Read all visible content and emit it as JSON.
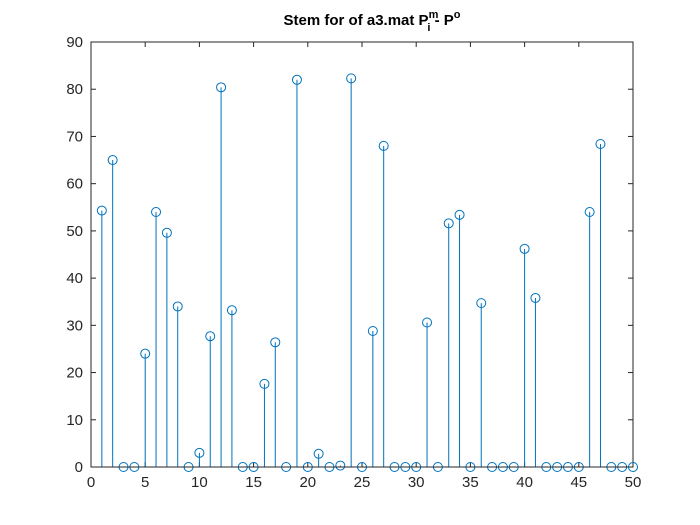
{
  "chart_data": {
    "type": "stem",
    "title": {
      "prefix": "Stem for of a3.mat P",
      "superscript": "m",
      "subscript": "i",
      "middle": " - P",
      "superscript2": "o"
    },
    "xlabel": "",
    "ylabel": "",
    "xlim": [
      0,
      50
    ],
    "ylim": [
      0,
      90
    ],
    "xticks": [
      0,
      5,
      10,
      15,
      20,
      25,
      30,
      35,
      40,
      45,
      50
    ],
    "yticks": [
      0,
      10,
      20,
      30,
      40,
      50,
      60,
      70,
      80,
      90
    ],
    "grid": false,
    "x": [
      1,
      2,
      3,
      4,
      5,
      6,
      7,
      8,
      9,
      10,
      11,
      12,
      13,
      14,
      15,
      16,
      17,
      18,
      19,
      20,
      21,
      22,
      23,
      24,
      25,
      26,
      27,
      28,
      29,
      30,
      31,
      32,
      33,
      34,
      35,
      36,
      37,
      38,
      39,
      40,
      41,
      42,
      43,
      44,
      45,
      46,
      47,
      48,
      49,
      50
    ],
    "values": [
      54.3,
      65.0,
      0,
      0,
      24.0,
      54.0,
      49.6,
      34.0,
      0,
      3.0,
      27.7,
      80.4,
      33.2,
      0,
      0,
      17.6,
      26.4,
      0,
      82.0,
      0,
      2.8,
      0,
      0.3,
      82.3,
      0,
      28.8,
      68.0,
      0,
      0,
      0,
      30.6,
      0,
      51.6,
      53.4,
      0,
      34.7,
      0,
      0,
      0,
      46.2,
      35.8,
      0,
      0,
      0,
      0,
      54.0,
      68.4,
      0,
      0,
      0
    ],
    "color": "#0072BD"
  }
}
